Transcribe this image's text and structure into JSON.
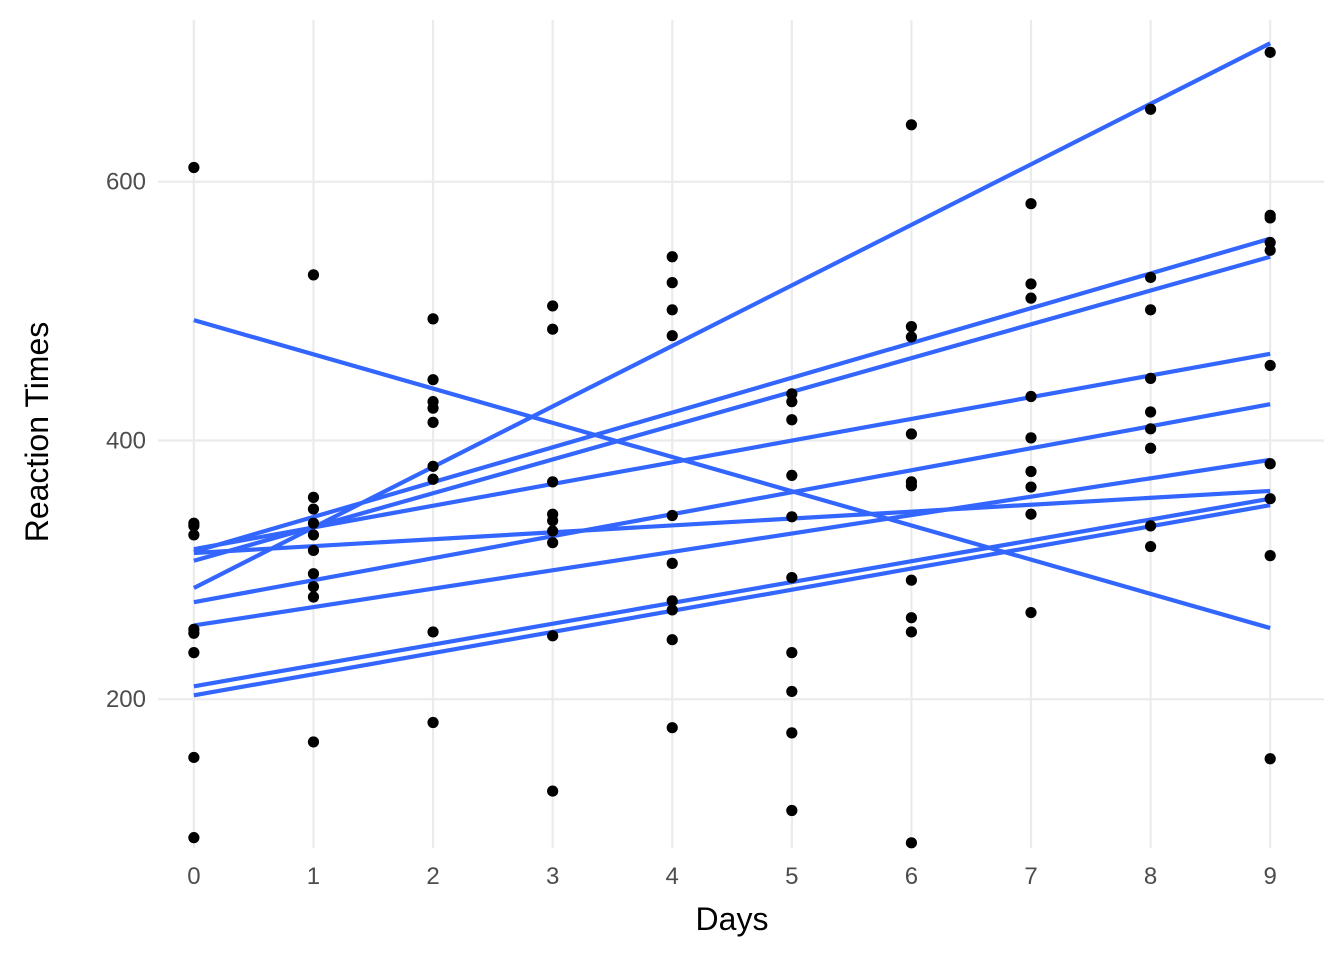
{
  "chart_data": {
    "type": "scatter",
    "title": "",
    "xlabel": "Days",
    "ylabel": "Reaction Times",
    "xlim": [
      -0.3,
      9.45
    ],
    "ylim": [
      85,
      725
    ],
    "x_ticks": [
      0,
      1,
      2,
      3,
      4,
      5,
      6,
      7,
      8,
      9
    ],
    "y_ticks": [
      200,
      400,
      600
    ],
    "grid": true,
    "legend": "none",
    "colors": {
      "points": "#000000",
      "lines": "#3366FF",
      "grid": "#EBEBEB"
    },
    "points": [
      {
        "x": 0,
        "y": 611
      },
      {
        "x": 0,
        "y": 336
      },
      {
        "x": 0,
        "y": 334
      },
      {
        "x": 0,
        "y": 327
      },
      {
        "x": 0,
        "y": 254
      },
      {
        "x": 0,
        "y": 251
      },
      {
        "x": 0,
        "y": 236
      },
      {
        "x": 0,
        "y": 155
      },
      {
        "x": 0,
        "y": 93
      },
      {
        "x": 1,
        "y": 528
      },
      {
        "x": 1,
        "y": 356
      },
      {
        "x": 1,
        "y": 347
      },
      {
        "x": 1,
        "y": 336
      },
      {
        "x": 1,
        "y": 327
      },
      {
        "x": 1,
        "y": 315
      },
      {
        "x": 1,
        "y": 297
      },
      {
        "x": 1,
        "y": 287
      },
      {
        "x": 1,
        "y": 279
      },
      {
        "x": 1,
        "y": 167
      },
      {
        "x": 2,
        "y": 494
      },
      {
        "x": 2,
        "y": 447
      },
      {
        "x": 2,
        "y": 430
      },
      {
        "x": 2,
        "y": 425
      },
      {
        "x": 2,
        "y": 414
      },
      {
        "x": 2,
        "y": 380
      },
      {
        "x": 2,
        "y": 370
      },
      {
        "x": 2,
        "y": 252
      },
      {
        "x": 2,
        "y": 182
      },
      {
        "x": 3,
        "y": 504
      },
      {
        "x": 3,
        "y": 486
      },
      {
        "x": 3,
        "y": 368
      },
      {
        "x": 3,
        "y": 343
      },
      {
        "x": 3,
        "y": 338
      },
      {
        "x": 3,
        "y": 330
      },
      {
        "x": 3,
        "y": 321
      },
      {
        "x": 3,
        "y": 249
      },
      {
        "x": 3,
        "y": 129
      },
      {
        "x": 4,
        "y": 542
      },
      {
        "x": 4,
        "y": 522
      },
      {
        "x": 4,
        "y": 501
      },
      {
        "x": 4,
        "y": 481
      },
      {
        "x": 4,
        "y": 342
      },
      {
        "x": 4,
        "y": 305
      },
      {
        "x": 4,
        "y": 276
      },
      {
        "x": 4,
        "y": 269
      },
      {
        "x": 4,
        "y": 246
      },
      {
        "x": 4,
        "y": 178
      },
      {
        "x": 5,
        "y": 436
      },
      {
        "x": 5,
        "y": 430
      },
      {
        "x": 5,
        "y": 416
      },
      {
        "x": 5,
        "y": 373
      },
      {
        "x": 5,
        "y": 341
      },
      {
        "x": 5,
        "y": 294
      },
      {
        "x": 5,
        "y": 236
      },
      {
        "x": 5,
        "y": 206
      },
      {
        "x": 5,
        "y": 174
      },
      {
        "x": 5,
        "y": 114
      },
      {
        "x": 6,
        "y": 644
      },
      {
        "x": 6,
        "y": 488
      },
      {
        "x": 6,
        "y": 480
      },
      {
        "x": 6,
        "y": 405
      },
      {
        "x": 6,
        "y": 368
      },
      {
        "x": 6,
        "y": 365
      },
      {
        "x": 6,
        "y": 292
      },
      {
        "x": 6,
        "y": 263
      },
      {
        "x": 6,
        "y": 252
      },
      {
        "x": 6,
        "y": 89
      },
      {
        "x": 7,
        "y": 583
      },
      {
        "x": 7,
        "y": 521
      },
      {
        "x": 7,
        "y": 510
      },
      {
        "x": 7,
        "y": 434
      },
      {
        "x": 7,
        "y": 402
      },
      {
        "x": 7,
        "y": 376
      },
      {
        "x": 7,
        "y": 364
      },
      {
        "x": 7,
        "y": 343
      },
      {
        "x": 7,
        "y": 267
      },
      {
        "x": 8,
        "y": 656
      },
      {
        "x": 8,
        "y": 526
      },
      {
        "x": 8,
        "y": 501
      },
      {
        "x": 8,
        "y": 448
      },
      {
        "x": 8,
        "y": 422
      },
      {
        "x": 8,
        "y": 409
      },
      {
        "x": 8,
        "y": 394
      },
      {
        "x": 8,
        "y": 334
      },
      {
        "x": 8,
        "y": 318
      },
      {
        "x": 9,
        "y": 700
      },
      {
        "x": 9,
        "y": 574
      },
      {
        "x": 9,
        "y": 572
      },
      {
        "x": 9,
        "y": 553
      },
      {
        "x": 9,
        "y": 547
      },
      {
        "x": 9,
        "y": 458
      },
      {
        "x": 9,
        "y": 382
      },
      {
        "x": 9,
        "y": 355
      },
      {
        "x": 9,
        "y": 311
      },
      {
        "x": 9,
        "y": 154
      }
    ],
    "lines": [
      {
        "y0": 286,
        "y9": 707
      },
      {
        "y0": 314,
        "y9": 556
      },
      {
        "y0": 307,
        "y9": 542
      },
      {
        "y0": 316,
        "y9": 467
      },
      {
        "y0": 275,
        "y9": 428
      },
      {
        "y0": 257,
        "y9": 385
      },
      {
        "y0": 313,
        "y9": 361
      },
      {
        "y0": 210,
        "y9": 355
      },
      {
        "y0": 203,
        "y9": 350
      },
      {
        "y0": 493,
        "y9": 255
      }
    ]
  }
}
